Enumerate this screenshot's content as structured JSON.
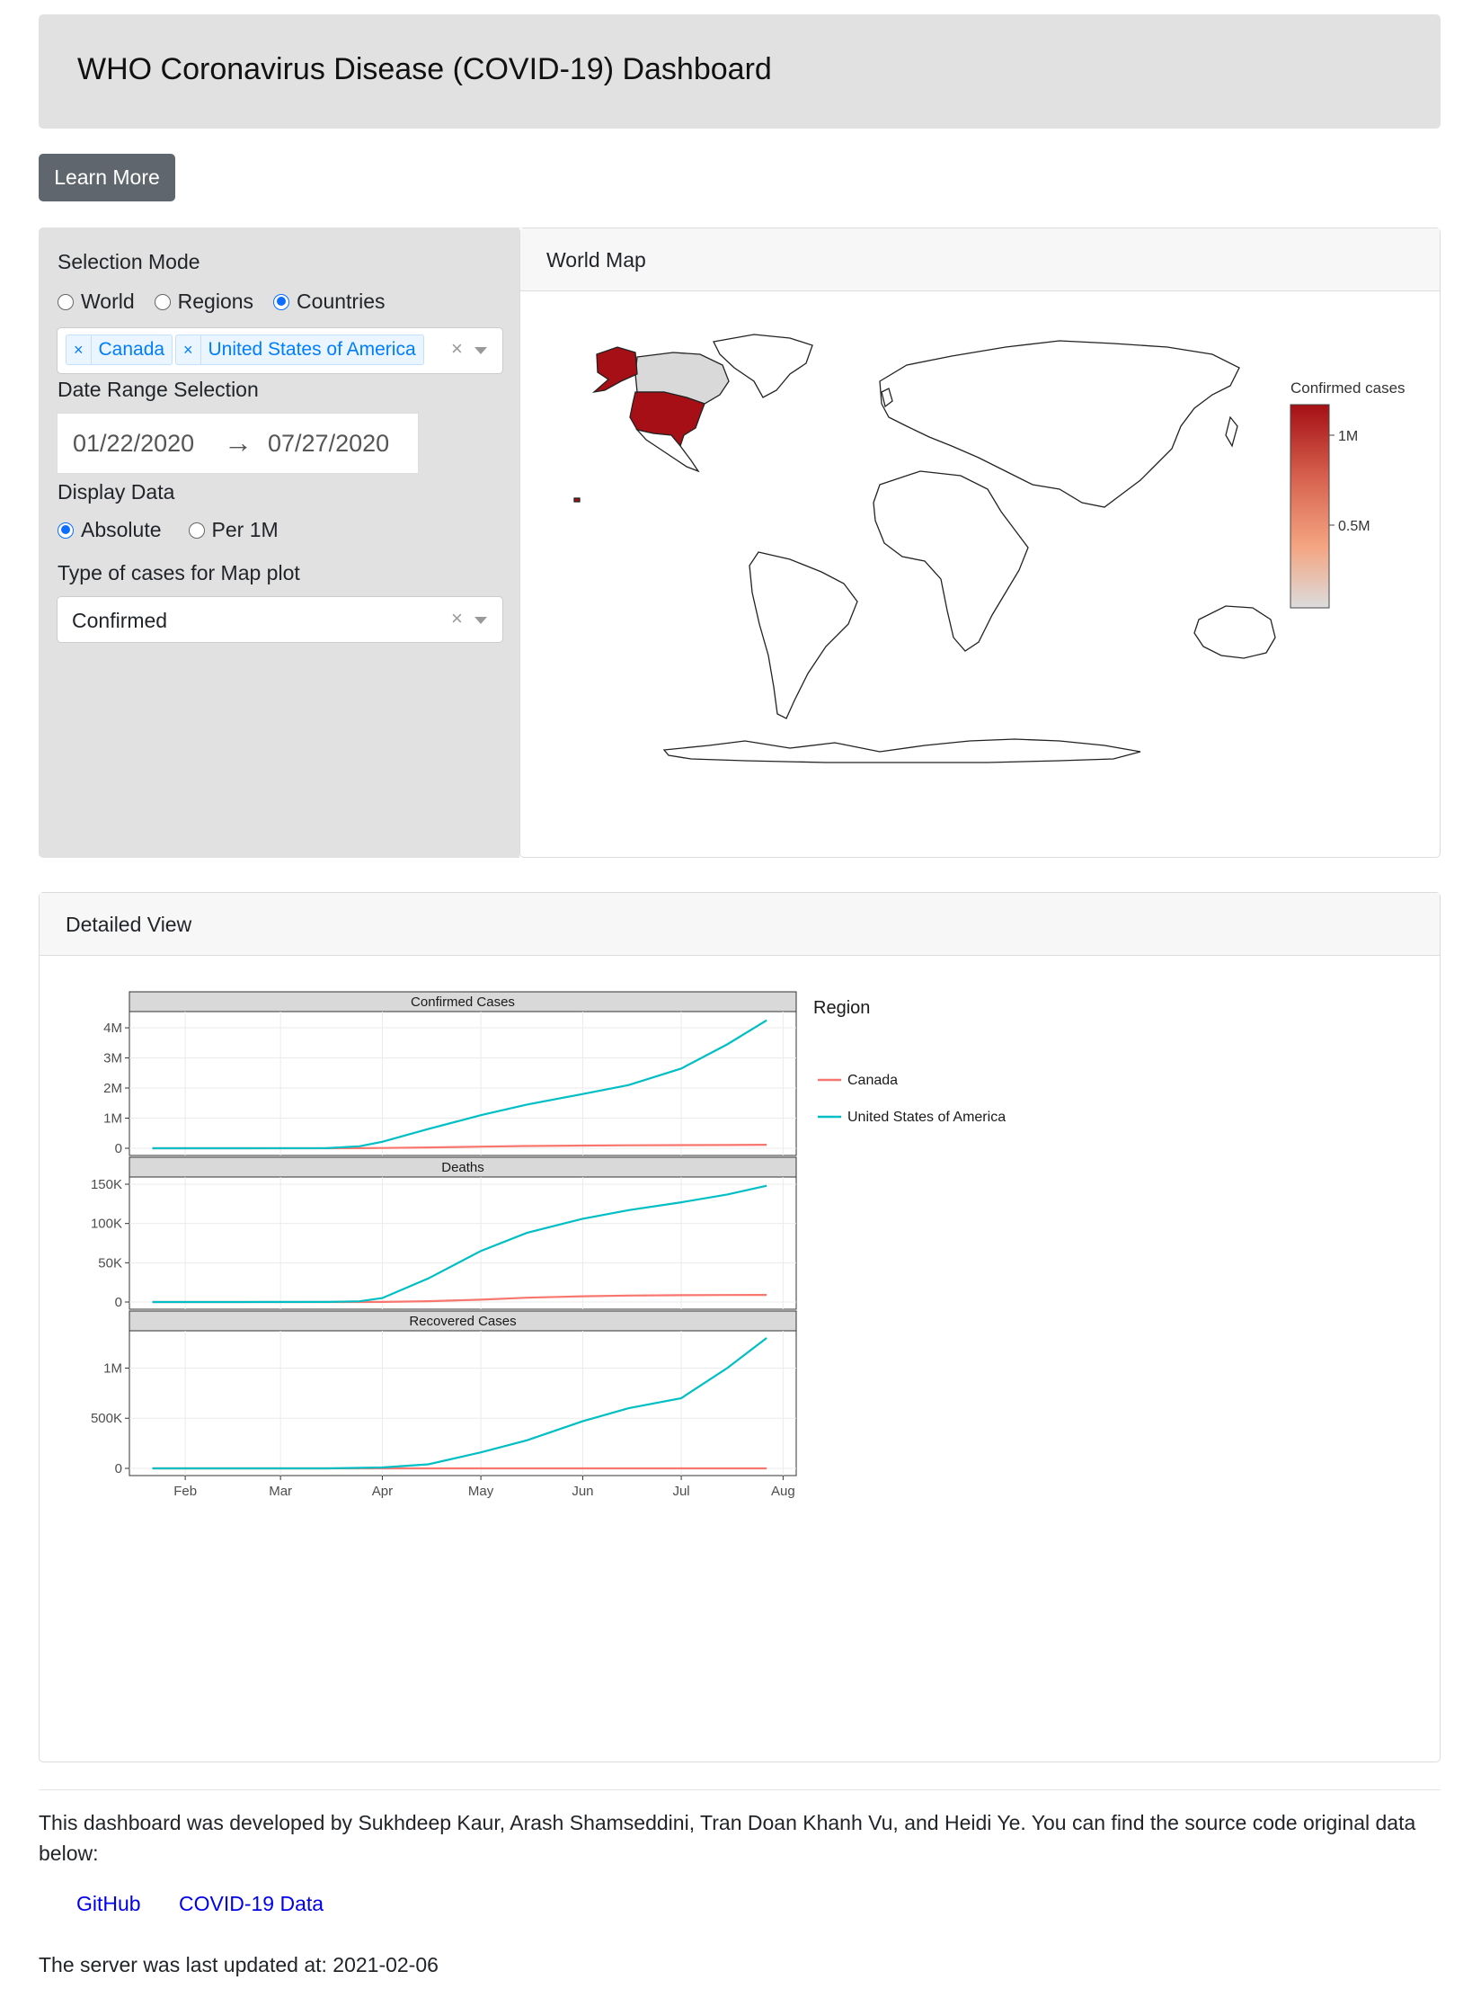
{
  "header": {
    "title": "WHO Coronavirus Disease (COVID-19) Dashboard"
  },
  "learn_more": {
    "label": "Learn More"
  },
  "sidebar": {
    "selection_mode_label": "Selection Mode",
    "modes": [
      {
        "label": "World",
        "selected": false
      },
      {
        "label": "Regions",
        "selected": false
      },
      {
        "label": "Countries",
        "selected": true
      }
    ],
    "selected_countries": [
      "Canada",
      "United States of America"
    ],
    "date_range_label": "Date Range Selection",
    "date_start": "01/22/2020",
    "date_arrow": "→",
    "date_end": "07/27/2020",
    "display_data_label": "Display Data",
    "display_options": [
      {
        "label": "Absolute",
        "selected": true
      },
      {
        "label": "Per 1M",
        "selected": false
      }
    ],
    "map_type_label": "Type of cases for Map plot",
    "map_type_value": "Confirmed",
    "clear_glyph": "×",
    "tag_remove_glyph": "×"
  },
  "map_card": {
    "title": "World Map",
    "colorbar_title": "Confirmed cases",
    "colorbar_ticks": [
      "1M",
      "0.5M"
    ],
    "highlight_color": "#a50f15",
    "selected_other_color": "#d9d9d9"
  },
  "detail_card": {
    "title": "Detailed View"
  },
  "chart_data": [
    {
      "type": "line",
      "title": "Confirmed Cases",
      "x_ticks": [
        "Feb",
        "Mar",
        "Apr",
        "May",
        "Jun",
        "Jul",
        "Aug"
      ],
      "y_ticks": [
        "0",
        "1M",
        "2M",
        "3M",
        "4M"
      ],
      "ylim": [
        0,
        4300000
      ],
      "x": [
        "2020-01-22",
        "2020-02-15",
        "2020-03-15",
        "2020-03-25",
        "2020-04-01",
        "2020-04-15",
        "2020-05-01",
        "2020-05-15",
        "2020-06-01",
        "2020-06-15",
        "2020-07-01",
        "2020-07-15",
        "2020-07-27"
      ],
      "series": [
        {
          "name": "Canada",
          "color": "#f8766d",
          "values": [
            0,
            7,
            300,
            3400,
            9600,
            28000,
            54000,
            75000,
            91000,
            99000,
            104000,
            108000,
            115000
          ]
        },
        {
          "name": "United States of America",
          "color": "#00bfc4",
          "values": [
            1,
            15,
            3500,
            65000,
            215000,
            640000,
            1100000,
            1450000,
            1800000,
            2100000,
            2650000,
            3450000,
            4250000
          ]
        }
      ]
    },
    {
      "type": "line",
      "title": "Deaths",
      "x_ticks": [
        "Feb",
        "Mar",
        "Apr",
        "May",
        "Jun",
        "Jul",
        "Aug"
      ],
      "y_ticks": [
        "0",
        "50K",
        "100K",
        "150K"
      ],
      "ylim": [
        0,
        150000
      ],
      "x": [
        "2020-01-22",
        "2020-02-15",
        "2020-03-15",
        "2020-03-25",
        "2020-04-01",
        "2020-04-15",
        "2020-05-01",
        "2020-05-15",
        "2020-06-01",
        "2020-06-15",
        "2020-07-01",
        "2020-07-15",
        "2020-07-27"
      ],
      "series": [
        {
          "name": "Canada",
          "color": "#f8766d",
          "values": [
            0,
            0,
            2,
            20,
            100,
            1000,
            3000,
            5500,
            7300,
            8200,
            8700,
            8900,
            9000
          ]
        },
        {
          "name": "United States of America",
          "color": "#00bfc4",
          "values": [
            0,
            0,
            60,
            900,
            5000,
            30000,
            65000,
            88000,
            106000,
            117000,
            127000,
            137000,
            148000
          ]
        }
      ]
    },
    {
      "type": "line",
      "title": "Recovered Cases",
      "x_ticks": [
        "Feb",
        "Mar",
        "Apr",
        "May",
        "Jun",
        "Jul",
        "Aug"
      ],
      "y_ticks": [
        "0",
        "500K",
        "1M"
      ],
      "ylim": [
        0,
        1300000
      ],
      "x": [
        "2020-01-22",
        "2020-02-15",
        "2020-03-15",
        "2020-04-01",
        "2020-04-15",
        "2020-05-01",
        "2020-05-15",
        "2020-06-01",
        "2020-06-15",
        "2020-07-01",
        "2020-07-15",
        "2020-07-27"
      ],
      "series": [
        {
          "name": "Canada",
          "color": "#f8766d",
          "values": [
            0,
            0,
            0,
            0,
            0,
            0,
            0,
            0,
            0,
            0,
            0,
            0
          ]
        },
        {
          "name": "United States of America",
          "color": "#00bfc4",
          "values": [
            0,
            0,
            100,
            9000,
            40000,
            160000,
            280000,
            470000,
            600000,
            700000,
            1000000,
            1300000
          ]
        }
      ]
    }
  ],
  "legend": {
    "title": "Region",
    "items": [
      {
        "label": "Canada",
        "color": "#f8766d"
      },
      {
        "label": "United States of America",
        "color": "#00bfc4"
      }
    ]
  },
  "footer": {
    "text": "This dashboard was developed by Sukhdeep Kaur, Arash Shamseddini, Tran Doan Khanh Vu, and Heidi Ye. You can find the source code original data below:",
    "links": [
      "GitHub",
      "COVID-19 Data"
    ],
    "updated": "The server was last updated at: 2021-02-06"
  }
}
